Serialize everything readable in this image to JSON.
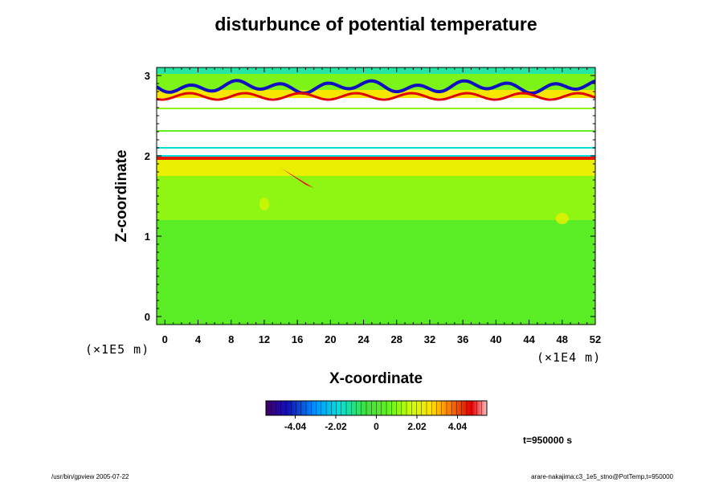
{
  "chart_data": {
    "type": "heatmap",
    "title": "disturbunce of potential temperature",
    "xlabel": "X-coordinate",
    "ylabel": "Z-coordinate",
    "x_unit": "(×1E4 m)",
    "y_unit": "(×1E5 m)",
    "xlim": [
      -1,
      52
    ],
    "ylim": [
      -0.1,
      3.1
    ],
    "x_ticks": [
      "0",
      "4",
      "8",
      "12",
      "16",
      "20",
      "24",
      "28",
      "32",
      "36",
      "40",
      "44",
      "48",
      "52"
    ],
    "x_tick_values": [
      0,
      4,
      8,
      12,
      16,
      20,
      24,
      28,
      32,
      36,
      40,
      44,
      48,
      52
    ],
    "y_ticks": [
      "0",
      "1",
      "2",
      "3"
    ],
    "y_tick_values": [
      0,
      1,
      2,
      3
    ],
    "colorbar": {
      "range": [
        -5.5,
        5.5
      ],
      "ticks": [
        "-4.04",
        "-2.02",
        "0",
        "2.02",
        "4.04"
      ],
      "tick_values": [
        -4.04,
        -2.02,
        0,
        2.02,
        4.04
      ]
    },
    "time_label": "t=950000 s",
    "regions": [
      {
        "z": [
          -0.1,
          1.2
        ],
        "value": 0.3
      },
      {
        "z": [
          1.2,
          1.75
        ],
        "value": 1.0
      },
      {
        "z": [
          1.75,
          1.95
        ],
        "value": 2.2
      },
      {
        "z": [
          1.95,
          2.0
        ],
        "value": 4.0
      },
      {
        "z": [
          2.0,
          2.72
        ],
        "value": null
      },
      {
        "z": [
          2.72,
          2.82
        ],
        "value": 2.5
      },
      {
        "z": [
          2.82,
          3.1
        ],
        "value": 0.8
      }
    ]
  },
  "footer": {
    "left": "/usr/bin/gpview 2005-07-22",
    "right": "arare-nakajima:c3_1e5_stno@PotTemp,t=950000"
  }
}
